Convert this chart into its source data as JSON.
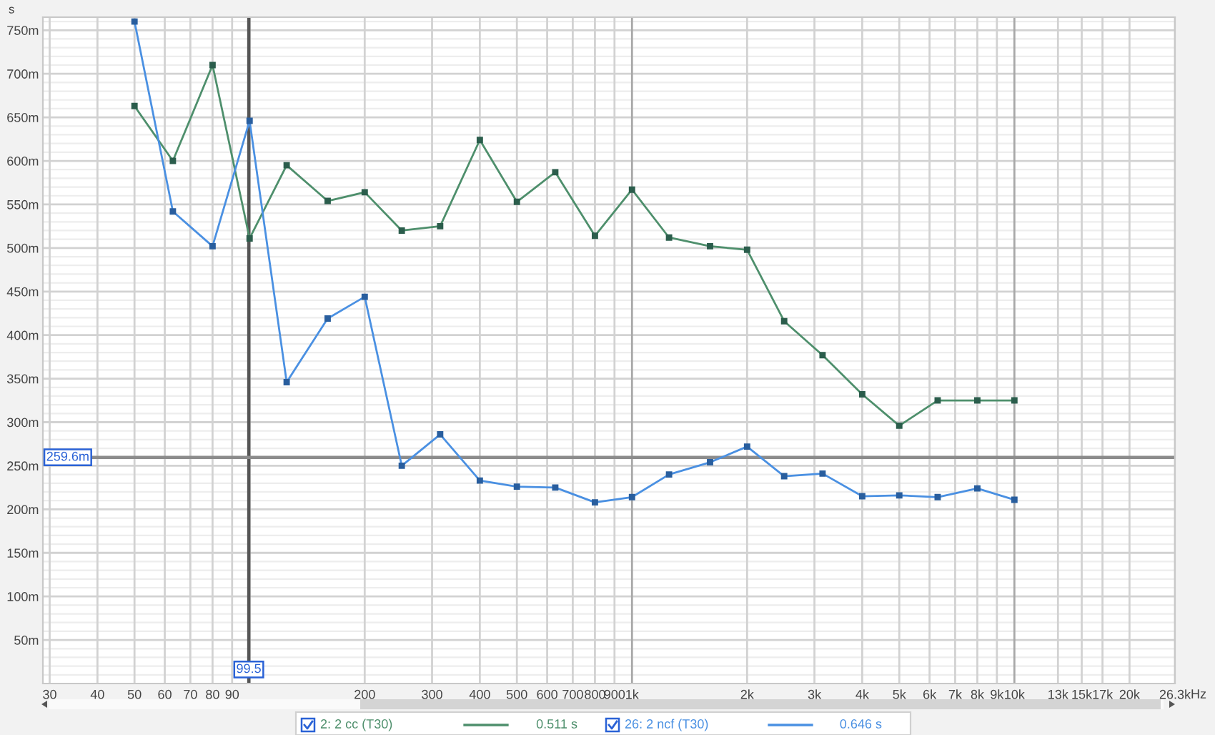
{
  "chart_data": {
    "type": "line",
    "xlabel": "Hz",
    "ylabel": "s",
    "log": "x",
    "grid": true,
    "legend": "bottom",
    "marker": "square",
    "line_style": "solid",
    "x": [
      50,
      63,
      80,
      100,
      125,
      160,
      200,
      250,
      315,
      400,
      500,
      630,
      800,
      1000,
      1250,
      1600,
      2000,
      2500,
      3150,
      4000,
      5000,
      6300,
      8000,
      10000
    ],
    "series": [
      {
        "name": "2: 2 cc (T30)",
        "color": "#4e8f6c",
        "values": [
          663,
          600,
          710,
          511,
          595,
          554,
          564,
          520,
          525,
          624,
          553,
          587,
          514,
          567,
          512,
          502,
          498,
          416,
          377,
          332,
          296,
          325,
          325,
          325
        ]
      },
      {
        "name": "26: 2 ncf (T30)",
        "color": "#4a90e2",
        "values": [
          760,
          542,
          502,
          646,
          346,
          419,
          444,
          250,
          286,
          233,
          226,
          225,
          208,
          214,
          240,
          254,
          272,
          238,
          241,
          215,
          216,
          214,
          224,
          211
        ]
      }
    ],
    "xlim": [
      28.8,
      26300
    ],
    "xticks": [
      30,
      40,
      50,
      60,
      70,
      80,
      90,
      {
        "value": 100,
        "label": null
      },
      200,
      300,
      400,
      500,
      600,
      700,
      800,
      900,
      {
        "value": 1000,
        "label": "1k"
      },
      {
        "value": 2000,
        "label": "2k"
      },
      {
        "value": 3000,
        "label": "3k"
      },
      {
        "value": 4000,
        "label": "4k"
      },
      {
        "value": 5000,
        "label": "5k"
      },
      {
        "value": 6000,
        "label": "6k"
      },
      {
        "value": 7000,
        "label": "7k"
      },
      {
        "value": 8000,
        "label": "8k"
      },
      {
        "value": 9000,
        "label": "9k"
      },
      {
        "value": 10000,
        "label": "10k"
      },
      {
        "value": 13000,
        "label": "13k"
      },
      {
        "value": 15000,
        "label": "15k"
      },
      {
        "value": 17000,
        "label": "17k"
      },
      {
        "value": 20000,
        "label": "20k"
      },
      {
        "value": 26300,
        "label": "26.3k"
      }
    ],
    "ylim": [
      0,
      765
    ],
    "yticks": [
      {
        "value": 50,
        "label": "50m"
      },
      {
        "value": 100,
        "label": "100m"
      },
      {
        "value": 150,
        "label": "150m"
      },
      {
        "value": 200,
        "label": "200m"
      },
      {
        "value": 250,
        "label": "250m"
      },
      {
        "value": 300,
        "label": "300m"
      },
      {
        "value": 350,
        "label": "350m"
      },
      {
        "value": 400,
        "label": "400m"
      },
      {
        "value": 450,
        "label": "450m"
      },
      {
        "value": 500,
        "label": "500m"
      },
      {
        "value": 550,
        "label": "550m"
      },
      {
        "value": 600,
        "label": "600m"
      },
      {
        "value": 650,
        "label": "650m"
      },
      {
        "value": 700,
        "label": "700m"
      },
      {
        "value": 750,
        "label": "750m"
      }
    ],
    "ref_lines": [
      {
        "axis": "x",
        "value": 99.5,
        "label": "99.5",
        "color": "#555555"
      },
      {
        "axis": "y",
        "value": 259.6,
        "label": "259.6m",
        "color": "#8c8c8c"
      }
    ],
    "annotations": [
      "0.511 s",
      "0.646 s"
    ]
  }
}
